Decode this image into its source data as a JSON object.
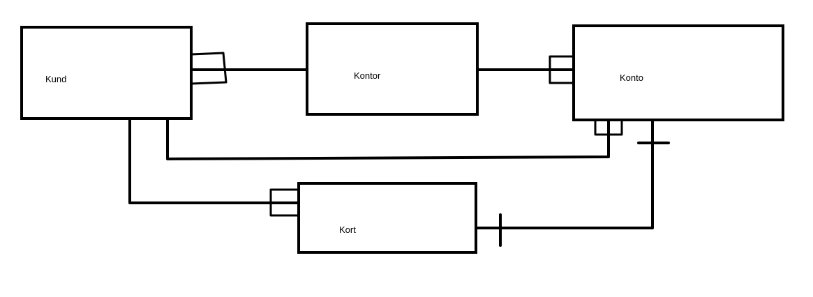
{
  "diagram": {
    "entities": {
      "kund": {
        "label": "Kund"
      },
      "kontor": {
        "label": "Kontor"
      },
      "konto": {
        "label": "Konto"
      },
      "kort": {
        "label": "Kort"
      }
    },
    "relationships": [
      {
        "from": "Kund",
        "to": "Kontor"
      },
      {
        "from": "Kontor",
        "to": "Konto"
      },
      {
        "from": "Kund",
        "to": "Konto"
      },
      {
        "from": "Kund",
        "to": "Kort"
      },
      {
        "from": "Konto",
        "to": "Kort"
      }
    ],
    "colors": {
      "stroke": "#000000",
      "background": "#ffffff"
    }
  }
}
